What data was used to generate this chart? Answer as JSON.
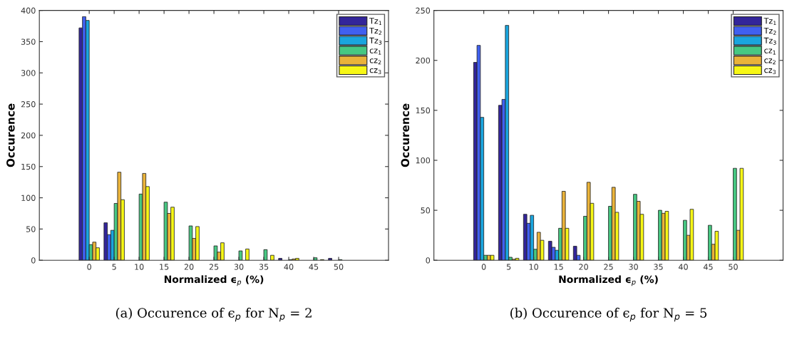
{
  "chart_data": [
    {
      "type": "bar",
      "xlabel": "Normalized ϵ$_{p}$ (%)",
      "ylabel": "Occurence",
      "x": [
        0,
        5,
        10,
        15,
        20,
        25,
        30,
        35,
        40,
        45,
        50
      ],
      "series": [
        {
          "name": "Tz$_{1}$",
          "color": "#33259a",
          "values": [
            372,
            60,
            null,
            null,
            null,
            null,
            null,
            null,
            3,
            null,
            3
          ]
        },
        {
          "name": "Tz$_{2}$",
          "color": "#4060f0",
          "values": [
            390,
            41,
            null,
            null,
            null,
            null,
            null,
            null,
            null,
            null,
            null
          ]
        },
        {
          "name": "Tz$_{3}$",
          "color": "#1aa5de",
          "values": [
            384,
            48,
            null,
            null,
            null,
            null,
            null,
            null,
            null,
            null,
            null
          ]
        },
        {
          "name": "cz$_{1}$",
          "color": "#47c882",
          "values": [
            25,
            91,
            106,
            93,
            55,
            23,
            15,
            17,
            1,
            4,
            1
          ]
        },
        {
          "name": "cz$_{2}$",
          "color": "#eab33a",
          "values": [
            29,
            141,
            139,
            75,
            35,
            13,
            null,
            null,
            2,
            null,
            null
          ]
        },
        {
          "name": "cz$_{3}$",
          "color": "#f7f716",
          "values": [
            20,
            97,
            118,
            85,
            54,
            28,
            18,
            8,
            3,
            1,
            null
          ]
        }
      ],
      "xlim": [
        -10,
        60
      ],
      "xticks": [
        0,
        5,
        10,
        15,
        20,
        25,
        30,
        35,
        40,
        45,
        50
      ],
      "ylim": [
        0,
        400
      ],
      "yticks": [
        0,
        50,
        100,
        150,
        200,
        250,
        300,
        350,
        400
      ],
      "legend": "top right",
      "grid": false,
      "annotations": [
        "(a) Occurence of ϵ$_{p}$ for N$_{p}$ = 2"
      ]
    },
    {
      "type": "bar",
      "xlabel": "Normalized ϵ$_{p}$ (%)",
      "ylabel": "Occurence",
      "x": [
        0,
        5,
        10,
        15,
        20,
        25,
        30,
        35,
        40,
        45,
        50
      ],
      "series": [
        {
          "name": "Tz$_{1}$",
          "color": "#33259a",
          "values": [
            198,
            155,
            46,
            19,
            14,
            null,
            null,
            null,
            null,
            null,
            null
          ]
        },
        {
          "name": "Tz$_{2}$",
          "color": "#4060f0",
          "values": [
            215,
            161,
            37,
            13,
            5,
            null,
            null,
            null,
            null,
            null,
            null
          ]
        },
        {
          "name": "Tz$_{3}$",
          "color": "#1aa5de",
          "values": [
            143,
            235,
            45,
            10,
            null,
            null,
            null,
            null,
            null,
            null,
            null
          ]
        },
        {
          "name": "cz$_{1}$",
          "color": "#47c882",
          "values": [
            5,
            3,
            11,
            32,
            44,
            54,
            66,
            50,
            40,
            35,
            92
          ]
        },
        {
          "name": "cz$_{2}$",
          "color": "#eab33a",
          "values": [
            5,
            1,
            28,
            69,
            78,
            73,
            59,
            47,
            25,
            16,
            30
          ]
        },
        {
          "name": "cz$_{3}$",
          "color": "#f7f716",
          "values": [
            5,
            2,
            20,
            32,
            57,
            48,
            46,
            49,
            51,
            29,
            92
          ]
        }
      ],
      "xlim": [
        -10,
        60
      ],
      "xticks": [
        0,
        5,
        10,
        15,
        20,
        25,
        30,
        35,
        40,
        45,
        50
      ],
      "ylim": [
        0,
        250
      ],
      "yticks": [
        0,
        50,
        100,
        150,
        200,
        250
      ],
      "legend": "top right",
      "grid": false,
      "annotations": [
        "(b) Occurence of ϵ$_{p}$ for N$_{p}$ = 5"
      ]
    }
  ]
}
